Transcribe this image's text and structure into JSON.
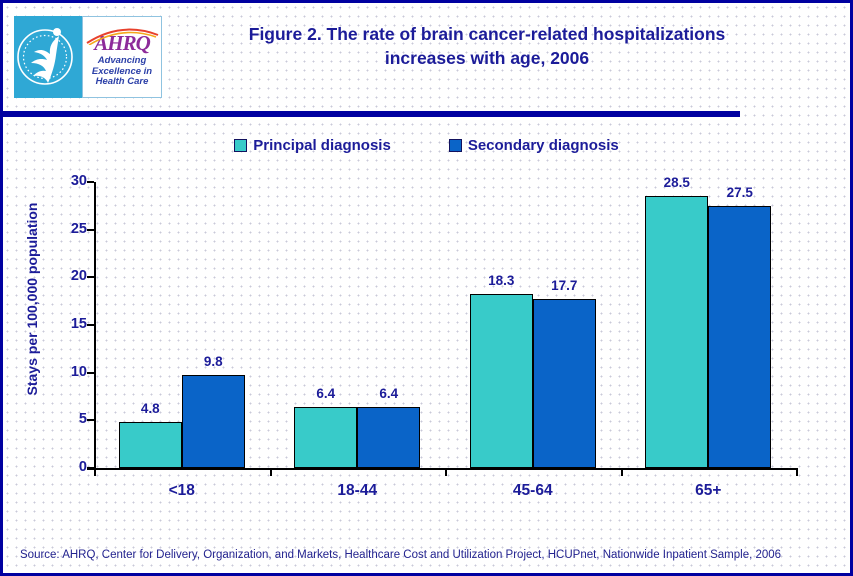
{
  "header": {
    "title_line1": "Figure 2. The rate of brain cancer-related hospitalizations",
    "title_line2": "increases with age, 2006"
  },
  "logo": {
    "org_acronym": "AHRQ",
    "tagline_line1": "Advancing",
    "tagline_line2": "Excellence in",
    "tagline_line3": "Health Care",
    "seal_name": "hhs-eagle-seal"
  },
  "chart_data": {
    "type": "bar",
    "title": "Figure 2. The rate of brain cancer-related hospitalizations increases with age, 2006",
    "categories": [
      "<18",
      "18-44",
      "45-64",
      "65+"
    ],
    "series": [
      {
        "name": "Principal diagnosis",
        "color": "#38CBC9",
        "values": [
          4.8,
          6.4,
          18.3,
          28.5
        ]
      },
      {
        "name": "Secondary diagnosis",
        "color": "#0A64C8",
        "values": [
          9.8,
          6.4,
          17.7,
          27.5
        ]
      }
    ],
    "xlabel": "",
    "ylabel": "Stays per 100,000 population",
    "ylim": [
      0,
      30
    ],
    "yticks": [
      0,
      5,
      10,
      15,
      20,
      25,
      30
    ],
    "grid": false,
    "legend_position": "top",
    "value_labels": true
  },
  "footer": {
    "source": "Source: AHRQ, Center for Delivery, Organization, and Markets, Healthcare Cost and Utilization Project, HCUPnet, Nationwide Inpatient Sample, 2006"
  },
  "colors": {
    "accent_navy": "#0000A0",
    "text_navy": "#1C1C99",
    "principal_teal": "#38CBC9",
    "secondary_blue": "#0A64C8",
    "logo_cyan": "#2FA8D5",
    "logo_purple": "#8D2B9A"
  }
}
